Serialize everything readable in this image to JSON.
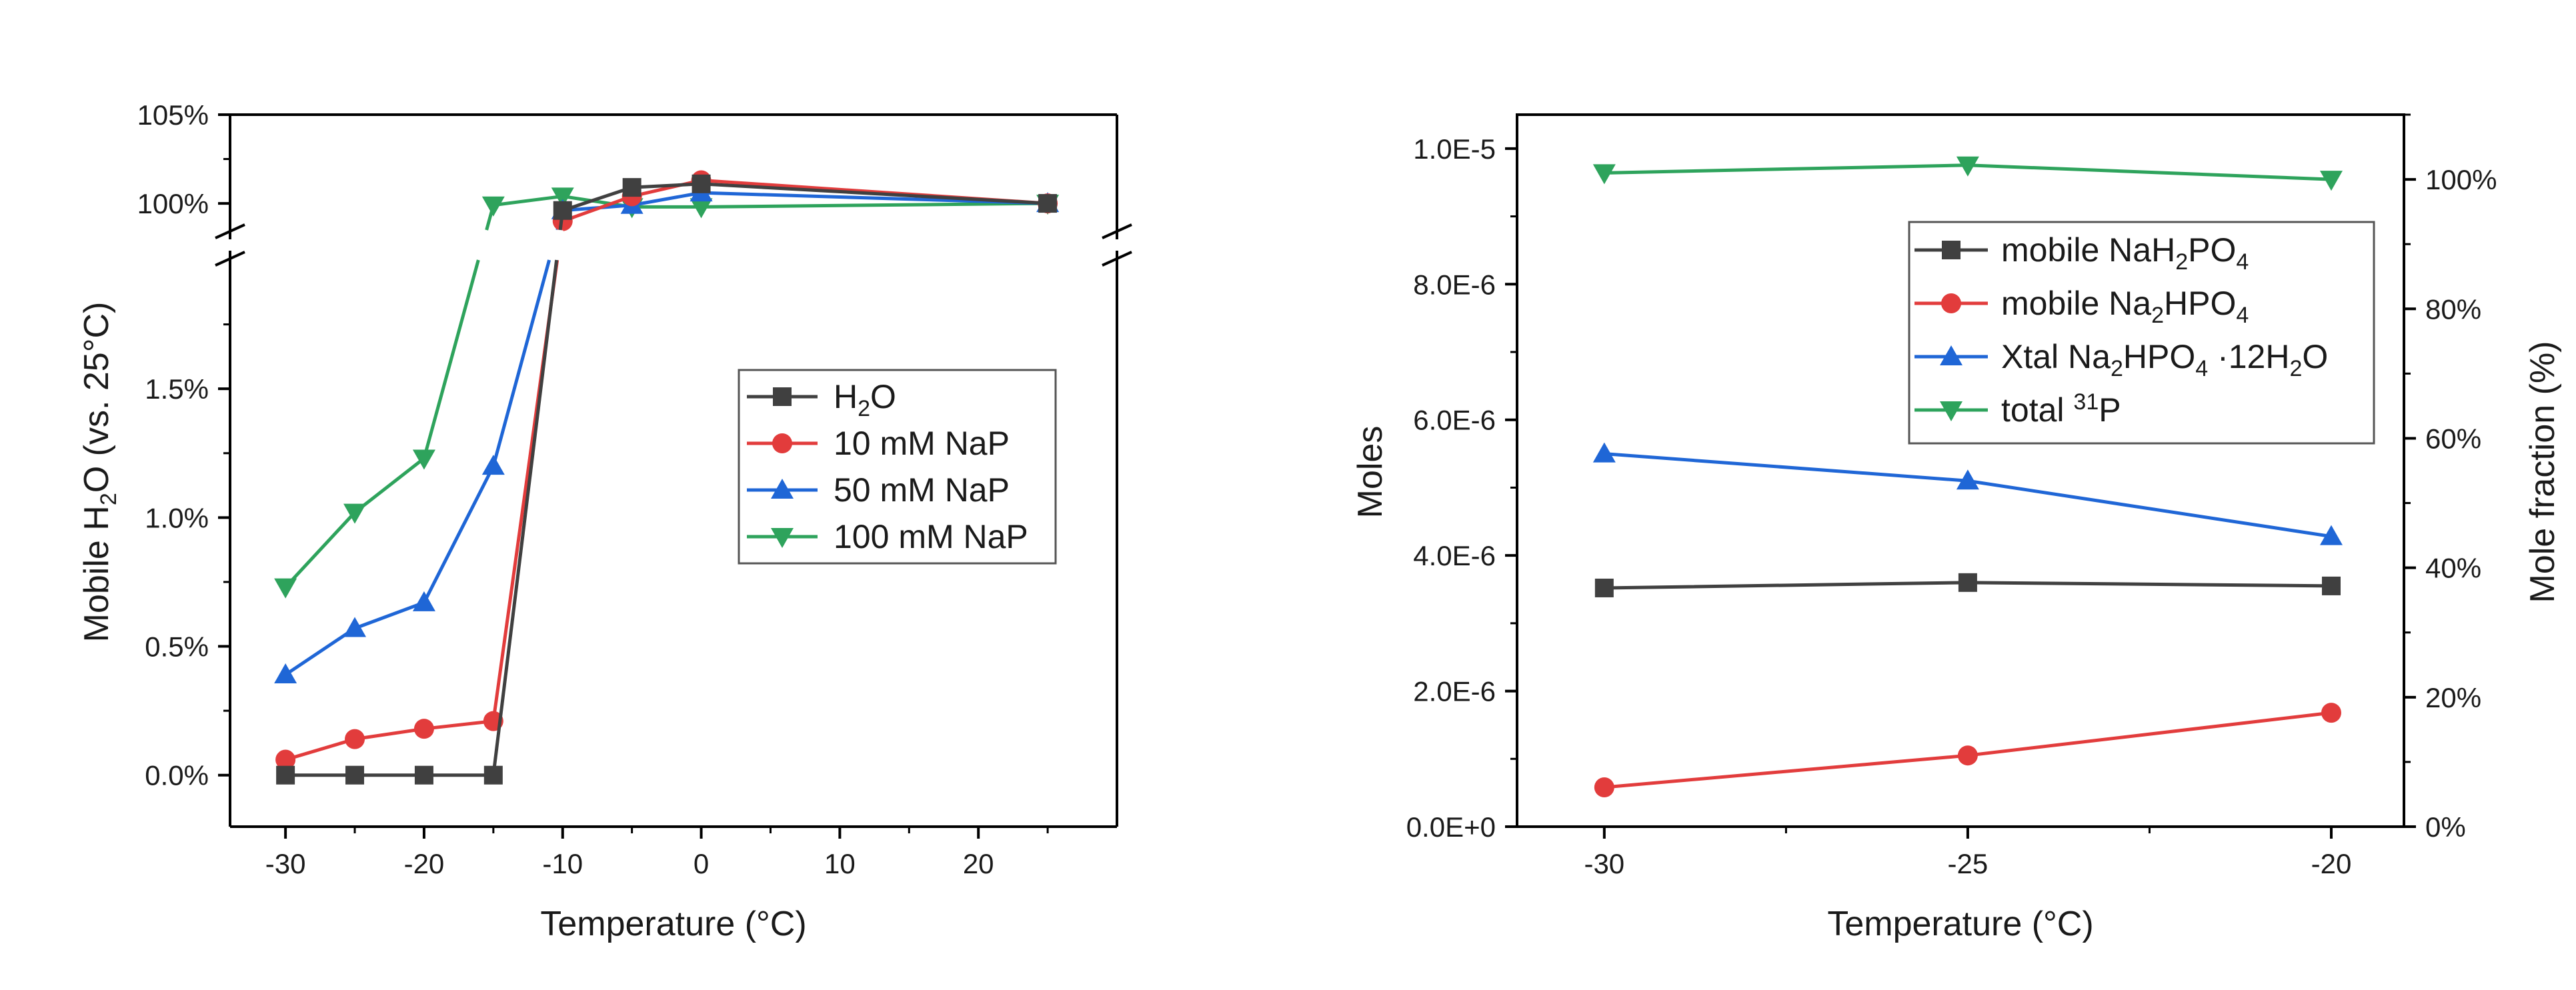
{
  "colors": {
    "black": "#404040",
    "red": "#e23c3c",
    "blue": "#1f66d6",
    "green": "#2ea35c"
  },
  "chart_data": [
    {
      "type": "line",
      "xlabel": "Temperature (°C)",
      "ylabel": "Mobile H2O (vs. 25°C)",
      "ylabel_parts": [
        "Mobile H",
        "2",
        "O (vs. 25°C)"
      ],
      "xlim": [
        -34,
        30
      ],
      "x_ticks": [
        -30,
        -20,
        -10,
        0,
        10,
        20
      ],
      "x_tick_labels": [
        "-30",
        "-20",
        "-10",
        "0",
        "10",
        "20"
      ],
      "y_axis_break": true,
      "ylim_lower": [
        -0.2,
        2.0
      ],
      "ylim_upper": [
        98.5,
        105
      ],
      "y_ticks_lower": [
        0.0,
        0.5,
        1.0,
        1.5
      ],
      "y_tick_labels_lower": [
        "0.0%",
        "0.5%",
        "1.0%",
        "1.5%"
      ],
      "y_ticks_upper": [
        100,
        105
      ],
      "y_tick_labels_upper": [
        "100%",
        "105%"
      ],
      "legend_position": "right-center",
      "x": [
        -30,
        -25,
        -20,
        -15,
        -10,
        -5,
        0,
        25
      ],
      "series": [
        {
          "name": "H2O",
          "name_parts": [
            "H",
            "2",
            "O"
          ],
          "color": "black",
          "marker": "square",
          "values": [
            0.0,
            0.0,
            0.0,
            0.0,
            99.6,
            100.9,
            101.1,
            100.0
          ]
        },
        {
          "name": "10 mM NaP",
          "name_parts": [
            "10 mM NaP"
          ],
          "color": "red",
          "marker": "circle",
          "values": [
            0.06,
            0.14,
            0.18,
            0.21,
            99.0,
            100.4,
            101.3,
            100.0
          ]
        },
        {
          "name": "50 mM NaP",
          "name_parts": [
            "50 mM NaP"
          ],
          "color": "blue",
          "marker": "triangle-up",
          "values": [
            0.39,
            0.57,
            0.67,
            1.2,
            99.6,
            99.9,
            100.6,
            100.0
          ]
        },
        {
          "name": "100 mM NaP",
          "name_parts": [
            "100 mM NaP"
          ],
          "color": "green",
          "marker": "triangle-down",
          "values": [
            0.73,
            1.02,
            1.23,
            99.9,
            100.4,
            99.8,
            99.8,
            100.0
          ]
        }
      ]
    },
    {
      "type": "line",
      "xlabel": "Temperature (°C)",
      "ylabel": "Moles",
      "y2label": "Mole fraction (%)",
      "xlim": [
        -31.2,
        -19.0
      ],
      "x_ticks": [
        -30,
        -25,
        -20
      ],
      "x_tick_labels": [
        "-30",
        "-25",
        "-20"
      ],
      "ylim": [
        0,
        1.05e-05
      ],
      "y_ticks": [
        0,
        2e-06,
        4e-06,
        6e-06,
        8e-06,
        1e-05
      ],
      "y_tick_labels": [
        "0.0E+0",
        "2.0E-6",
        "4.0E-6",
        "6.0E-6",
        "8.0E-6",
        "1.0E-5"
      ],
      "y2lim": [
        0,
        110
      ],
      "y2_ticks": [
        0,
        20,
        40,
        60,
        80,
        100
      ],
      "y2_tick_labels": [
        "0%",
        "20%",
        "40%",
        "60%",
        "80%",
        "100%"
      ],
      "legend_position": "top-right",
      "x": [
        -30,
        -25,
        -20
      ],
      "series": [
        {
          "name": "mobile NaH2PO4",
          "name_parts": [
            "mobile NaH",
            "2",
            "PO",
            "4"
          ],
          "color": "black",
          "marker": "square",
          "axis": "left",
          "values": [
            3.52e-06,
            3.6e-06,
            3.55e-06
          ]
        },
        {
          "name": "mobile Na2HPO4",
          "name_parts": [
            "mobile Na",
            "2",
            "HPO",
            "4"
          ],
          "color": "red",
          "marker": "circle",
          "axis": "left",
          "values": [
            5.8e-07,
            1.05e-06,
            1.68e-06
          ]
        },
        {
          "name": "Xtal Na2HPO4 ·12H2O",
          "name_parts": [
            "Xtal Na",
            "2",
            "HPO",
            "4",
            " ·12H",
            "2",
            "O"
          ],
          "color": "blue",
          "marker": "triangle-up",
          "axis": "left",
          "values": [
            5.5e-06,
            5.1e-06,
            4.28e-06
          ]
        },
        {
          "name": "total 31P",
          "name_parts": [
            "total ",
            "31",
            "P"
          ],
          "name_sup": [
            1
          ],
          "color": "green",
          "marker": "triangle-down",
          "axis": "right",
          "values": [
            101.0,
            102.2,
            100.0
          ]
        }
      ]
    }
  ]
}
